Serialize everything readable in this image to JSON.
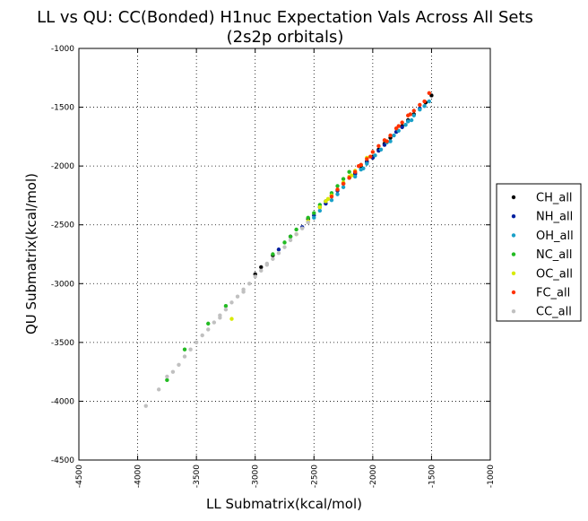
{
  "chart_data": {
    "type": "scatter",
    "title": "LL vs QU: CC(Bonded) H1nuc Expectation Vals Across All Sets",
    "subtitle": "(2s2p orbitals)",
    "xlabel": "LL Submatrix(kcal/mol)",
    "ylabel": "QU Submatrix(kcal/mol)",
    "xlim": [
      -4500,
      -1000
    ],
    "ylim": [
      -4500,
      -1000
    ],
    "xticks": [
      -4500,
      -4000,
      -3500,
      -3000,
      -2500,
      -2000,
      -1500,
      -1000
    ],
    "yticks": [
      -4500,
      -4000,
      -3500,
      -3000,
      -2500,
      -2000,
      -1500,
      -1000
    ],
    "xtick_labels": [
      "-4500",
      "-4000",
      "-3500",
      "-3000",
      "-2500",
      "-2000",
      "-1500",
      "-1000"
    ],
    "ytick_labels": [
      "-4500",
      "-4000",
      "-3500",
      "-3000",
      "-2500",
      "-2000",
      "-1500",
      "-1000"
    ],
    "grid": true,
    "legend_position": "right, outside plot",
    "series": [
      {
        "name": "CH_all",
        "color": "#000000",
        "points": [
          [
            -1500,
            -1400
          ],
          [
            -1550,
            -1460
          ],
          [
            -1650,
            -1560
          ],
          [
            -1750,
            -1660
          ],
          [
            -1850,
            -1760
          ],
          [
            -1950,
            -1860
          ],
          [
            -2000,
            -1920
          ],
          [
            -2050,
            -1960
          ],
          [
            -2100,
            -2010
          ],
          [
            -2150,
            -2060
          ],
          [
            -2250,
            -2150
          ],
          [
            -2350,
            -2250
          ],
          [
            -2450,
            -2350
          ],
          [
            -2550,
            -2450
          ],
          [
            -2700,
            -2600
          ],
          [
            -2850,
            -2760
          ],
          [
            -2950,
            -2860
          ],
          [
            -3000,
            -2920
          ],
          [
            -1700,
            -1610
          ],
          [
            -1900,
            -1810
          ],
          [
            -2200,
            -2100
          ],
          [
            -2400,
            -2300
          ]
        ]
      },
      {
        "name": "NH_all",
        "color": "#001f9f",
        "points": [
          [
            -1600,
            -1510
          ],
          [
            -1700,
            -1620
          ],
          [
            -1800,
            -1710
          ],
          [
            -1900,
            -1820
          ],
          [
            -1950,
            -1870
          ],
          [
            -2050,
            -1970
          ],
          [
            -2150,
            -2070
          ],
          [
            -2300,
            -2210
          ],
          [
            -2400,
            -2320
          ],
          [
            -2500,
            -2420
          ],
          [
            -2600,
            -2520
          ],
          [
            -2800,
            -2710
          ],
          [
            -1750,
            -1670
          ],
          [
            -2000,
            -1930
          ]
        ]
      },
      {
        "name": "OH_all",
        "color": "#1aa0c8",
        "points": [
          [
            -1520,
            -1450
          ],
          [
            -1560,
            -1490
          ],
          [
            -1600,
            -1520
          ],
          [
            -1650,
            -1570
          ],
          [
            -1700,
            -1620
          ],
          [
            -1720,
            -1650
          ],
          [
            -1780,
            -1700
          ],
          [
            -1820,
            -1740
          ],
          [
            -1880,
            -1800
          ],
          [
            -1930,
            -1860
          ],
          [
            -1980,
            -1910
          ],
          [
            -2050,
            -1980
          ],
          [
            -2100,
            -2030
          ],
          [
            -2150,
            -2090
          ],
          [
            -2250,
            -2180
          ],
          [
            -2300,
            -2240
          ],
          [
            -2350,
            -2290
          ],
          [
            -2450,
            -2380
          ],
          [
            -1670,
            -1610
          ],
          [
            -1850,
            -1790
          ],
          [
            -2080,
            -2020
          ],
          [
            -2500,
            -2440
          ]
        ]
      },
      {
        "name": "NC_all",
        "color": "#22bb22",
        "points": [
          [
            -2200,
            -2050
          ],
          [
            -2250,
            -2110
          ],
          [
            -2300,
            -2170
          ],
          [
            -2350,
            -2230
          ],
          [
            -2450,
            -2330
          ],
          [
            -2550,
            -2440
          ],
          [
            -2650,
            -2540
          ],
          [
            -2750,
            -2650
          ],
          [
            -2850,
            -2750
          ],
          [
            -3250,
            -3190
          ],
          [
            -3400,
            -3340
          ],
          [
            -3600,
            -3560
          ],
          [
            -3750,
            -3820
          ],
          [
            -2500,
            -2400
          ],
          [
            -2700,
            -2600
          ]
        ]
      },
      {
        "name": "OC_all",
        "color": "#d8ea00",
        "points": [
          [
            -2050,
            -1930
          ],
          [
            -2100,
            -1990
          ],
          [
            -2150,
            -2040
          ],
          [
            -2200,
            -2090
          ],
          [
            -2250,
            -2140
          ],
          [
            -2300,
            -2200
          ],
          [
            -2350,
            -2250
          ],
          [
            -2400,
            -2300
          ],
          [
            -2450,
            -2350
          ],
          [
            -2550,
            -2470
          ],
          [
            -2650,
            -2580
          ],
          [
            -3200,
            -3300
          ],
          [
            -2180,
            -2080
          ],
          [
            -2380,
            -2280
          ]
        ]
      },
      {
        "name": "FC_all",
        "color": "#ff3300",
        "points": [
          [
            -1520,
            -1380
          ],
          [
            -1560,
            -1450
          ],
          [
            -1600,
            -1480
          ],
          [
            -1650,
            -1530
          ],
          [
            -1700,
            -1570
          ],
          [
            -1750,
            -1630
          ],
          [
            -1800,
            -1680
          ],
          [
            -1850,
            -1740
          ],
          [
            -1900,
            -1780
          ],
          [
            -1950,
            -1830
          ],
          [
            -2000,
            -1880
          ],
          [
            -2050,
            -1940
          ],
          [
            -2100,
            -1990
          ],
          [
            -2150,
            -2050
          ],
          [
            -2200,
            -2100
          ],
          [
            -2250,
            -2150
          ],
          [
            -2300,
            -2200
          ],
          [
            -2350,
            -2260
          ],
          [
            -1880,
            -1790
          ],
          [
            -2020,
            -1920
          ],
          [
            -2120,
            -2000
          ],
          [
            -1680,
            -1560
          ],
          [
            -1780,
            -1660
          ]
        ]
      },
      {
        "name": "CC_all",
        "color": "#c0c0c0",
        "points": [
          [
            -2550,
            -2480
          ],
          [
            -2600,
            -2530
          ],
          [
            -2650,
            -2580
          ],
          [
            -2700,
            -2630
          ],
          [
            -2750,
            -2690
          ],
          [
            -2800,
            -2740
          ],
          [
            -2850,
            -2790
          ],
          [
            -2900,
            -2840
          ],
          [
            -2950,
            -2890
          ],
          [
            -3000,
            -2940
          ],
          [
            -3050,
            -3000
          ],
          [
            -3100,
            -3050
          ],
          [
            -3150,
            -3110
          ],
          [
            -3200,
            -3160
          ],
          [
            -3250,
            -3220
          ],
          [
            -3300,
            -3270
          ],
          [
            -3350,
            -3330
          ],
          [
            -3400,
            -3390
          ],
          [
            -3450,
            -3440
          ],
          [
            -3500,
            -3500
          ],
          [
            -3550,
            -3560
          ],
          [
            -3600,
            -3620
          ],
          [
            -3650,
            -3690
          ],
          [
            -3700,
            -3750
          ],
          [
            -3750,
            -3790
          ],
          [
            -3820,
            -3900
          ],
          [
            -3930,
            -4040
          ],
          [
            -2900,
            -2830
          ],
          [
            -3100,
            -3070
          ],
          [
            -3300,
            -3290
          ]
        ]
      }
    ]
  }
}
